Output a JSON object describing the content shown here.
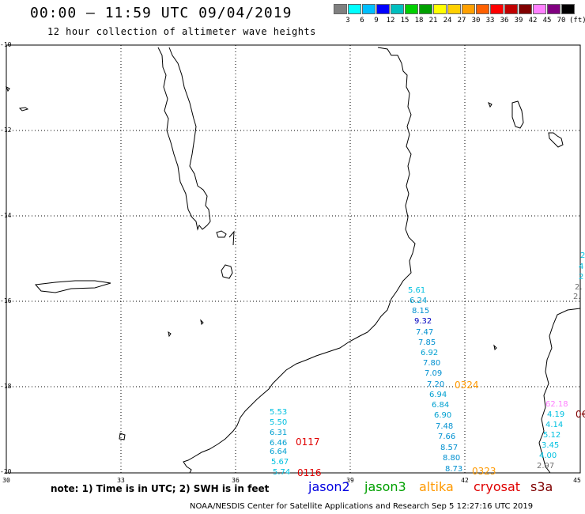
{
  "header": {
    "title": "00:00 – 11:59 UTC 09/04/2019",
    "subtitle": "12 hour collection of altimeter wave heights"
  },
  "scale": {
    "colors": [
      "#808080",
      "#00ffff",
      "#00bfff",
      "#0000ff",
      "#00bfbf",
      "#00d000",
      "#00a000",
      "#ffff00",
      "#ffd000",
      "#ffa000",
      "#ff6000",
      "#ff0000",
      "#c00000",
      "#800000",
      "#ff80ff",
      "#800080",
      "#000000"
    ],
    "labels": [
      "3",
      "6",
      "9",
      "12",
      "15",
      "18",
      "21",
      "24",
      "27",
      "30",
      "33",
      "36",
      "39",
      "42",
      "45",
      "70"
    ],
    "unit": "(ft)"
  },
  "axes": {
    "lat_labels": [
      "-10",
      "-12",
      "-14",
      "-16",
      "-18",
      "-20"
    ],
    "lon_labels": [
      "30",
      "33",
      "36",
      "39",
      "42",
      "45"
    ]
  },
  "tracks": [
    {
      "name": "track-a",
      "pass": "0117",
      "pass2": "0116",
      "pass_color": "#e00000",
      "values": [
        {
          "v": "5.53",
          "c": "#00c0e0"
        },
        {
          "v": "5.50",
          "c": "#00c0e0"
        },
        {
          "v": "6.31",
          "c": "#00a0d0"
        },
        {
          "v": "6.46",
          "c": "#00a0d0"
        },
        {
          "v": "6.64",
          "c": "#00a0d0"
        },
        {
          "v": "5.67",
          "c": "#00c0e0"
        },
        {
          "v": "5.74",
          "c": "#00c0e0"
        }
      ]
    },
    {
      "name": "track-b",
      "pass": "0324",
      "pass2": "0323",
      "pass_color": "#ff9900",
      "values": [
        {
          "v": "5.61",
          "c": "#00c0e0"
        },
        {
          "v": "6.24",
          "c": "#00a0d0"
        },
        {
          "v": "8.15",
          "c": "#0090d0"
        },
        {
          "v": "9.32",
          "c": "#0000c0"
        },
        {
          "v": "7.47",
          "c": "#0090d0"
        },
        {
          "v": "7.85",
          "c": "#0090d0"
        },
        {
          "v": "6.92",
          "c": "#00a0d0"
        },
        {
          "v": "7.80",
          "c": "#0090d0"
        },
        {
          "v": "7.09",
          "c": "#0090d0"
        },
        {
          "v": "7.20",
          "c": "#0090d0"
        },
        {
          "v": "6.94",
          "c": "#00a0d0"
        },
        {
          "v": "6.84",
          "c": "#00a0d0"
        },
        {
          "v": "6.90",
          "c": "#00a0d0"
        },
        {
          "v": "7.48",
          "c": "#0090d0"
        },
        {
          "v": "7.66",
          "c": "#0090d0"
        },
        {
          "v": "8.57",
          "c": "#0090d0"
        },
        {
          "v": "8.80",
          "c": "#0090d0"
        },
        {
          "v": "8.73",
          "c": "#0090d0"
        }
      ]
    },
    {
      "name": "track-c",
      "values": [
        {
          "v": "62.18",
          "c": "#ff80ff"
        },
        {
          "v": "4.19",
          "c": "#00c0e0"
        },
        {
          "v": "4.14",
          "c": "#00c0e0"
        },
        {
          "v": "5.12",
          "c": "#00c0e0"
        },
        {
          "v": "3.45",
          "c": "#00c0e0"
        },
        {
          "v": "4.00",
          "c": "#00c0e0"
        },
        {
          "v": "2.97",
          "c": "#707070"
        }
      ]
    }
  ],
  "edge_labels": {
    "right_pass": "0€",
    "right_top_a": "2",
    "right_top_b": "4",
    "right_top_c": "2",
    "right_top_d": "2.",
    "right_top_e": "2."
  },
  "footer": {
    "note": "note:  1) Time is in UTC;  2) SWH is in feet",
    "satellites": [
      {
        "name": "jason2",
        "color": "#0000e0"
      },
      {
        "name": "jason3",
        "color": "#00a000"
      },
      {
        "name": "altika",
        "color": "#ff9900"
      },
      {
        "name": "cryosat",
        "color": "#e00000"
      },
      {
        "name": "s3a",
        "color": "#800000"
      }
    ],
    "credit": "NOAA/NESDIS Center for Satellite Applications and Research    Sep  5 12:27:16 UTC 2019"
  }
}
